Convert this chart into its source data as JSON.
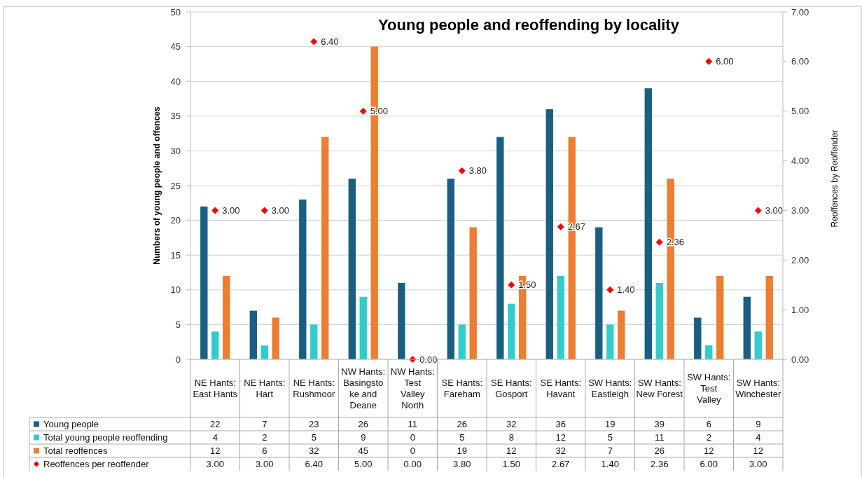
{
  "chart_data": {
    "type": "bar",
    "title": "Young people and reoffending by locality",
    "ylabel": "Numbers of young people and offences",
    "y2label": "Reoffences by Reoffender",
    "categories": [
      "NE Hants: East Hants",
      "NE Hants: Hart",
      "NE Hants: Rushmoor",
      "NW Hants: Basingstoke and Deane",
      "NW Hants: Test Valley North",
      "SE Hants: Fareham",
      "SE Hants: Gosport",
      "SE Hants: Havant",
      "SW Hants: Eastleigh",
      "SW Hants: New Forest",
      "SW Hants: Test Valley",
      "SW Hants: Winchester"
    ],
    "series": [
      {
        "name": "Young people",
        "color": "#1a5f82",
        "values": [
          22,
          7,
          23,
          26,
          11,
          26,
          32,
          36,
          19,
          39,
          6,
          9
        ],
        "value_labels": [
          "22",
          "7",
          "23",
          "26",
          "11",
          "26",
          "32",
          "36",
          "19",
          "39",
          "6",
          "9"
        ]
      },
      {
        "name": "Total young people reoffending",
        "color": "#33cccc",
        "values": [
          4,
          2,
          5,
          9,
          0,
          5,
          8,
          12,
          5,
          11,
          2,
          4
        ],
        "value_labels": [
          "4",
          "2",
          "5",
          "9",
          "0",
          "5",
          "8",
          "12",
          "5",
          "11",
          "2",
          "4"
        ]
      },
      {
        "name": "Total reoffences",
        "color": "#ed7d31",
        "values": [
          12,
          6,
          32,
          45,
          0,
          19,
          12,
          32,
          7,
          26,
          12,
          12
        ],
        "value_labels": [
          "12",
          "6",
          "32",
          "45",
          "0",
          "19",
          "12",
          "32",
          "7",
          "26",
          "12",
          "12"
        ]
      },
      {
        "name": "Reoffences per reoffender",
        "type": "scatter",
        "axis": "y2",
        "marker": "diamond",
        "color": "#ff0000",
        "values": [
          3.0,
          3.0,
          6.4,
          5.0,
          0.0,
          3.8,
          1.5,
          2.67,
          1.4,
          2.36,
          6.0,
          3.0
        ],
        "value_labels": [
          "3.00",
          "3.00",
          "6.40",
          "5.00",
          "0.00",
          "3.80",
          "1.50",
          "2.67",
          "1.40",
          "2.36",
          "6.00",
          "3.00"
        ]
      }
    ],
    "ylim": [
      0,
      50
    ],
    "yticks": [
      0,
      5,
      10,
      15,
      20,
      25,
      30,
      35,
      40,
      45,
      50
    ],
    "y2lim": [
      0,
      7
    ],
    "y2ticks": [
      {
        "value": 0,
        "label": "0.00"
      },
      {
        "value": 1,
        "label": "1.00"
      },
      {
        "value": 2,
        "label": "2.00"
      },
      {
        "value": 3,
        "label": "3.00"
      },
      {
        "value": 4,
        "label": "4.00"
      },
      {
        "value": 5,
        "label": "5.00"
      },
      {
        "value": 6,
        "label": "6.00"
      },
      {
        "value": 7,
        "label": "7.00"
      }
    ],
    "grid": "y",
    "legend": "bottom"
  }
}
